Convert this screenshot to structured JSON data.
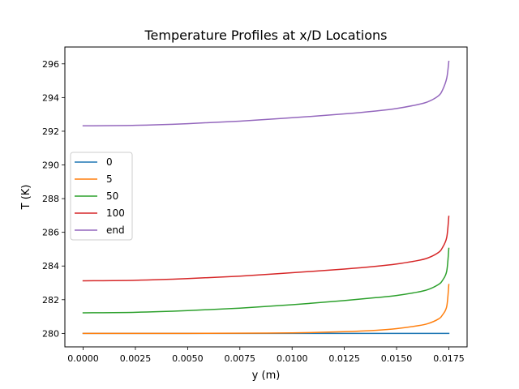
{
  "chart_data": {
    "type": "line",
    "title": "Temperature Profiles at x/D Locations",
    "xlabel": "y (m)",
    "ylabel": "T (K)",
    "xlim": [
      -0.000875,
      0.018375
    ],
    "ylim": [
      279.2,
      297.0
    ],
    "xticks": [
      0.0,
      0.0025,
      0.005,
      0.0075,
      0.01,
      0.0125,
      0.015,
      0.0175
    ],
    "xtick_labels": [
      "0.0000",
      "0.0025",
      "0.0050",
      "0.0075",
      "0.0100",
      "0.0125",
      "0.0150",
      "0.0175"
    ],
    "yticks": [
      280,
      282,
      284,
      286,
      288,
      290,
      292,
      294,
      296
    ],
    "ytick_labels": [
      "280",
      "282",
      "284",
      "286",
      "288",
      "290",
      "292",
      "294",
      "296"
    ],
    "grid": false,
    "legend_position": "center-left",
    "series": [
      {
        "name": "0",
        "color": "#1f77b4",
        "x": [
          0.0,
          0.0175
        ],
        "y": [
          280.0,
          280.0
        ]
      },
      {
        "name": "5",
        "color": "#ff7f0e",
        "x": [
          0.0,
          0.0025,
          0.005,
          0.0075,
          0.01,
          0.0125,
          0.014,
          0.015,
          0.016,
          0.0165,
          0.017,
          0.0172,
          0.0174,
          0.0175
        ],
        "y": [
          280.0,
          280.0,
          280.0,
          280.01,
          280.03,
          280.1,
          280.18,
          280.28,
          280.45,
          280.58,
          280.85,
          281.1,
          281.6,
          282.9
        ]
      },
      {
        "name": "50",
        "color": "#2ca02c",
        "x": [
          0.0,
          0.0025,
          0.005,
          0.0075,
          0.01,
          0.0125,
          0.014,
          0.015,
          0.016,
          0.0165,
          0.017,
          0.0172,
          0.0174,
          0.0175
        ],
        "y": [
          281.22,
          281.25,
          281.35,
          281.5,
          281.7,
          281.95,
          282.12,
          282.25,
          282.45,
          282.6,
          282.9,
          283.15,
          283.7,
          285.05
        ]
      },
      {
        "name": "100",
        "color": "#d62728",
        "x": [
          0.0,
          0.0025,
          0.005,
          0.0075,
          0.01,
          0.0125,
          0.014,
          0.015,
          0.016,
          0.0165,
          0.017,
          0.0172,
          0.0174,
          0.0175
        ],
        "y": [
          283.12,
          283.15,
          283.25,
          283.4,
          283.6,
          283.82,
          283.98,
          284.12,
          284.32,
          284.48,
          284.8,
          285.1,
          285.7,
          286.95
        ]
      },
      {
        "name": "end",
        "color": "#9467bd",
        "x": [
          0.0,
          0.0025,
          0.005,
          0.0075,
          0.01,
          0.0125,
          0.014,
          0.015,
          0.016,
          0.0165,
          0.017,
          0.0172,
          0.0174,
          0.0175
        ],
        "y": [
          292.32,
          292.35,
          292.45,
          292.6,
          292.8,
          293.03,
          293.2,
          293.35,
          293.58,
          293.75,
          294.1,
          294.45,
          295.15,
          296.15
        ]
      }
    ]
  }
}
